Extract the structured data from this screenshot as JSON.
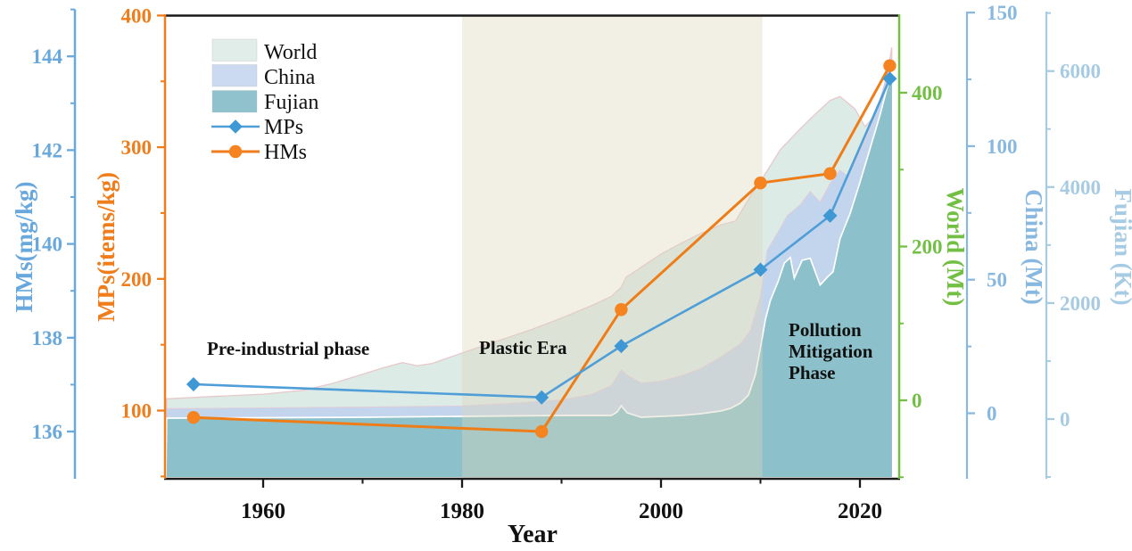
{
  "legend": {
    "items": [
      {
        "label": "World",
        "swatch": "#e0ede9"
      },
      {
        "label": "China",
        "swatch": "#cbdaf0"
      },
      {
        "label": "Fujian",
        "swatch": "#8fc2cd"
      },
      {
        "label": "MPs",
        "marker": "diamond",
        "color": "#4f9ed8"
      },
      {
        "label": "HMs",
        "marker": "circle",
        "color": "#ef7d1b"
      }
    ]
  },
  "axes": {
    "hms": {
      "title": "HMs(mg/kg)",
      "color": "#68a8dc",
      "ticks": [
        136,
        138,
        140,
        142,
        144
      ],
      "minor": [
        137,
        139,
        141,
        143,
        145
      ]
    },
    "mps": {
      "title": "MPs(items/kg)",
      "color": "#ef7d1b",
      "ticks": [
        100,
        200,
        300,
        400
      ],
      "minor": [
        50,
        150,
        250,
        350
      ]
    },
    "world": {
      "title": "World (Mt)",
      "color": "#72bf44",
      "ticks": [
        0,
        200,
        400
      ],
      "minor": [
        -100,
        100,
        300
      ]
    },
    "china": {
      "title": "China (Mt)",
      "color": "#88b8e0",
      "ticks": [
        0,
        50,
        100,
        150
      ],
      "minor": [
        25,
        75,
        125
      ]
    },
    "fujian": {
      "title": "Fujian (Kt)",
      "color": "#a6cbe3",
      "ticks": [
        0,
        2000,
        4000,
        6000
      ],
      "minor": [
        -1000,
        1000,
        3000,
        5000,
        7000
      ]
    },
    "x": {
      "title": "Year",
      "color": "#111111",
      "ticks": [
        1960,
        1980,
        2000,
        2020
      ],
      "minor": [
        1970,
        1990,
        2010
      ]
    }
  },
  "annotations": {
    "pre_industrial": "Pre-industrial phase",
    "plastic_era": "Plastic Era",
    "pollution": {
      "line1": "Pollution",
      "line2": "Mitigation",
      "line3": "Phase"
    }
  },
  "chart_data": {
    "type": "area+line combo, multi-axis",
    "xlabel": "Year",
    "x_range": [
      1950,
      2024
    ],
    "shaded_band": {
      "from_year": 1980,
      "to_year": 2010.2,
      "fill": "#ddd6bb"
    },
    "areas": [
      {
        "name": "World",
        "unit": "Mt",
        "axis": "world",
        "ylim": [
          0,
          500
        ],
        "points": [
          [
            1950.3,
            2
          ],
          [
            1955,
            5
          ],
          [
            1960,
            8
          ],
          [
            1964,
            13
          ],
          [
            1967,
            22
          ],
          [
            1970,
            34
          ],
          [
            1972,
            42
          ],
          [
            1974,
            49
          ],
          [
            1975.5,
            45
          ],
          [
            1977,
            48
          ],
          [
            1979,
            57
          ],
          [
            1981,
            66
          ],
          [
            1984,
            79
          ],
          [
            1987,
            92
          ],
          [
            1990,
            107
          ],
          [
            1993,
            123
          ],
          [
            1995,
            135
          ],
          [
            1996,
            147
          ],
          [
            1996.5,
            160
          ],
          [
            1998,
            173
          ],
          [
            2000,
            190
          ],
          [
            2002,
            204
          ],
          [
            2004,
            217
          ],
          [
            2006,
            228
          ],
          [
            2007.5,
            233
          ],
          [
            2009,
            266
          ],
          [
            2010.5,
            295
          ],
          [
            2012,
            326
          ],
          [
            2014,
            353
          ],
          [
            2015.5,
            372
          ],
          [
            2017,
            390
          ],
          [
            2018,
            395
          ],
          [
            2019.5,
            379
          ],
          [
            2020.5,
            356
          ],
          [
            2021.5,
            370
          ],
          [
            2022.2,
            395
          ],
          [
            2022.8,
            428
          ],
          [
            2023.2,
            459
          ]
        ]
      },
      {
        "name": "China",
        "unit": "Mt",
        "axis": "china",
        "ylim": [
          0,
          150
        ],
        "points": [
          [
            1950.3,
            1.7
          ],
          [
            1960,
            2
          ],
          [
            1970,
            2.3
          ],
          [
            1980,
            2.7
          ],
          [
            1985,
            3.7
          ],
          [
            1990,
            5
          ],
          [
            1993,
            7
          ],
          [
            1995,
            10.3
          ],
          [
            1996,
            16.3
          ],
          [
            1996.7,
            14
          ],
          [
            1998,
            11.3
          ],
          [
            2000,
            12
          ],
          [
            2002,
            14
          ],
          [
            2004,
            16.7
          ],
          [
            2006,
            21
          ],
          [
            2008,
            26
          ],
          [
            2009,
            31
          ],
          [
            2010,
            44
          ],
          [
            2010.7,
            61
          ],
          [
            2011.8,
            68
          ],
          [
            2012.7,
            74
          ],
          [
            2014,
            78
          ],
          [
            2015,
            83
          ],
          [
            2016,
            79
          ],
          [
            2017,
            86
          ],
          [
            2018,
            91
          ],
          [
            2018.7,
            89
          ],
          [
            2019.5,
            94
          ],
          [
            2020.5,
            102
          ],
          [
            2021.5,
            111
          ],
          [
            2022.3,
            121
          ],
          [
            2023.2,
            133
          ]
        ]
      },
      {
        "name": "Fujian",
        "unit": "Kt",
        "axis": "fujian",
        "ylim": [
          0,
          6500
        ],
        "points": [
          [
            1950.3,
            15
          ],
          [
            1960,
            23
          ],
          [
            1970,
            31
          ],
          [
            1980,
            46
          ],
          [
            1990,
            62
          ],
          [
            1995,
            62
          ],
          [
            1995.6,
            123
          ],
          [
            1996,
            231
          ],
          [
            1996.6,
            108
          ],
          [
            1998,
            31
          ],
          [
            2000,
            46
          ],
          [
            2002,
            62
          ],
          [
            2004,
            92
          ],
          [
            2006,
            138
          ],
          [
            2007,
            185
          ],
          [
            2008,
            277
          ],
          [
            2008.8,
            415
          ],
          [
            2009.5,
            770
          ],
          [
            2010,
            1230
          ],
          [
            2010.5,
            1720
          ],
          [
            2011,
            2045
          ],
          [
            2011.8,
            2385
          ],
          [
            2012.4,
            2690
          ],
          [
            2013,
            2785
          ],
          [
            2013.4,
            2430
          ],
          [
            2014.2,
            2740
          ],
          [
            2015,
            2770
          ],
          [
            2016,
            2310
          ],
          [
            2016.8,
            2460
          ],
          [
            2017.3,
            2540
          ],
          [
            2018,
            3110
          ],
          [
            2019,
            3540
          ],
          [
            2020,
            4080
          ],
          [
            2021,
            4650
          ],
          [
            2022,
            5230
          ],
          [
            2022.7,
            5690
          ],
          [
            2023.3,
            6030
          ]
        ]
      }
    ],
    "lines": [
      {
        "name": "MPs",
        "unit": "items/kg",
        "axis": "mps",
        "marker": "diamond",
        "color": "#4f9ed8",
        "points": [
          [
            1953,
            120
          ],
          [
            1988,
            110
          ],
          [
            1996,
            149
          ],
          [
            2010,
            207
          ],
          [
            2017,
            248
          ],
          [
            2023,
            352
          ]
        ]
      },
      {
        "name": "HMs",
        "unit": "mg/kg",
        "axis": "hms",
        "marker": "circle",
        "color": "#ef7d1b",
        "points": [
          [
            1953,
            136.3
          ],
          [
            1988,
            136.0
          ],
          [
            1996,
            138.6
          ],
          [
            2010,
            141.3
          ],
          [
            2017,
            141.5
          ],
          [
            2023,
            143.8
          ]
        ]
      }
    ],
    "phases": [
      {
        "label": "Pre-industrial phase",
        "range": [
          1950,
          1980
        ]
      },
      {
        "label": "Plastic Era",
        "range": [
          1980,
          2010
        ]
      },
      {
        "label": "Pollution Mitigation Phase",
        "range": [
          2010,
          2024
        ]
      }
    ]
  }
}
